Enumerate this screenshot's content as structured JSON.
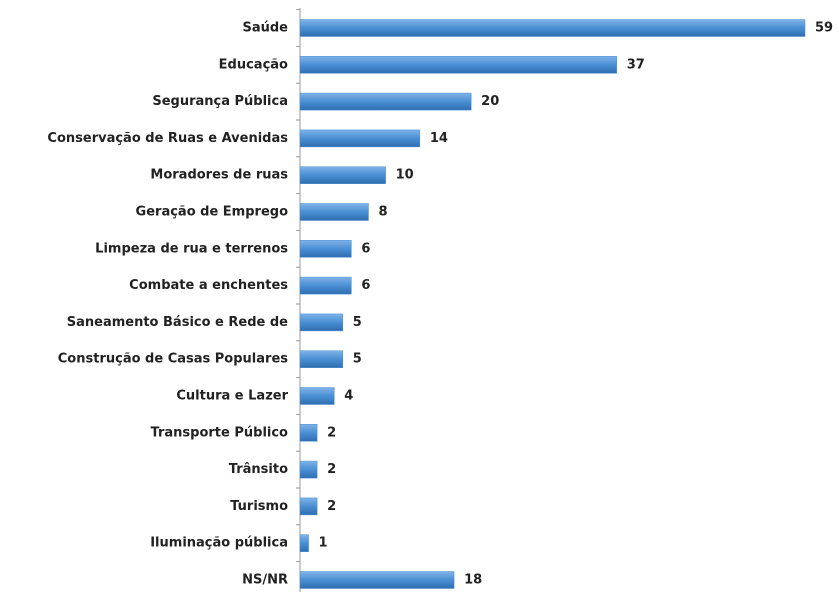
{
  "chart_data": {
    "type": "bar",
    "orientation": "horizontal",
    "color": "#4a8fd4",
    "categories": [
      "Saúde",
      "Educação",
      "Segurança Pública",
      "Conservação de Ruas e Avenidas",
      "Moradores de ruas",
      "Geração de Emprego",
      "Limpeza de rua e terrenos",
      "Combate a enchentes",
      "Saneamento Básico e Rede de",
      "Construção de Casas Populares",
      "Cultura e Lazer",
      "Transporte Público",
      "Trânsito",
      "Turismo",
      "Iluminação pública",
      "NS/NR"
    ],
    "values": [
      59,
      37,
      20,
      14,
      10,
      8,
      6,
      6,
      5,
      5,
      4,
      2,
      2,
      2,
      1,
      18
    ]
  }
}
